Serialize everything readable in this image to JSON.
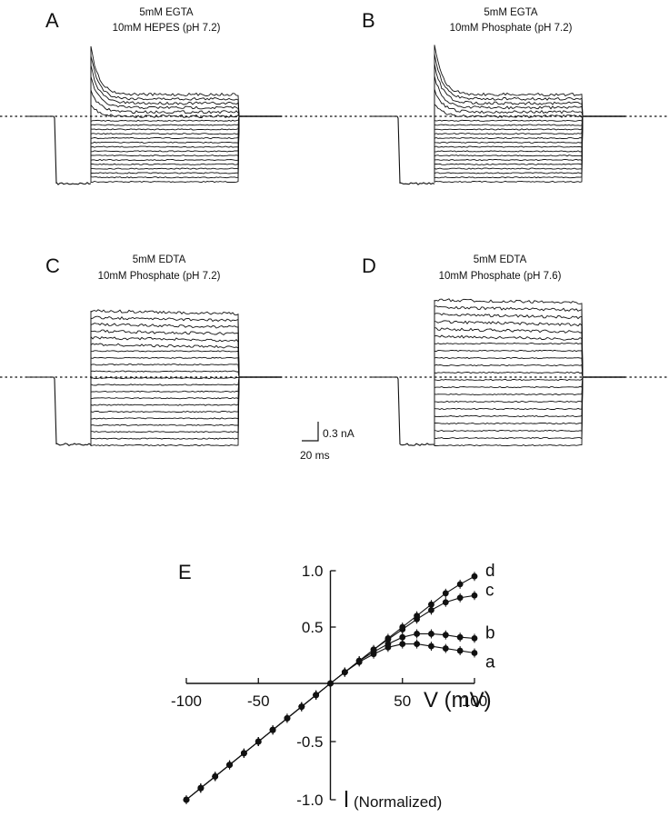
{
  "panels": [
    {
      "letter": "A",
      "condition": [
        "5mM EGTA",
        "10mM HEPES (pH 7.2)"
      ],
      "peak": "strong"
    },
    {
      "letter": "B",
      "condition": [
        "5mM EGTA",
        "10mM Phosphate (pH 7.2)"
      ],
      "peak": "strong"
    },
    {
      "letter": "C",
      "condition": [
        "5mM EDTA",
        "10mM Phosphate (pH 7.2)"
      ],
      "peak": "none"
    },
    {
      "letter": "D",
      "condition": [
        "5mM EDTA",
        "10mM Phosphate (pH 7.6)"
      ],
      "peak": "none"
    }
  ],
  "scale_bar": {
    "current": "0.3 nA",
    "time": "20 ms"
  },
  "chart_data": {
    "type": "line",
    "panel_label": "E",
    "x_axis_title": "V (mV)",
    "y_axis_note": "(Normalized)",
    "xlim": [
      -100,
      100
    ],
    "ylim": [
      -1.0,
      1.0
    ],
    "x_ticks": [
      "-100",
      "-50",
      "50",
      "100"
    ],
    "y_ticks": [
      "1.0",
      "0.5",
      "-0.5",
      "-1.0"
    ],
    "x": [
      -100,
      -90,
      -80,
      -70,
      -60,
      -50,
      -40,
      -30,
      -20,
      -10,
      0,
      10,
      20,
      30,
      40,
      50,
      60,
      70,
      80,
      90,
      100
    ],
    "series": [
      {
        "name": "a",
        "values": [
          -1.0,
          -0.9,
          -0.8,
          -0.7,
          -0.6,
          -0.5,
          -0.4,
          -0.3,
          -0.2,
          -0.1,
          0.0,
          0.1,
          0.19,
          0.26,
          0.32,
          0.35,
          0.35,
          0.33,
          0.31,
          0.29,
          0.27
        ]
      },
      {
        "name": "b",
        "values": [
          -1.0,
          -0.9,
          -0.8,
          -0.7,
          -0.6,
          -0.5,
          -0.4,
          -0.3,
          -0.2,
          -0.1,
          0.0,
          0.1,
          0.2,
          0.28,
          0.35,
          0.41,
          0.44,
          0.44,
          0.43,
          0.41,
          0.4
        ]
      },
      {
        "name": "c",
        "values": [
          -1.0,
          -0.9,
          -0.8,
          -0.7,
          -0.6,
          -0.5,
          -0.4,
          -0.3,
          -0.2,
          -0.1,
          0.0,
          0.1,
          0.2,
          0.3,
          0.39,
          0.48,
          0.57,
          0.65,
          0.72,
          0.76,
          0.78
        ]
      },
      {
        "name": "d",
        "values": [
          -1.0,
          -0.9,
          -0.8,
          -0.7,
          -0.6,
          -0.5,
          -0.4,
          -0.3,
          -0.2,
          -0.1,
          0.0,
          0.1,
          0.2,
          0.3,
          0.4,
          0.5,
          0.6,
          0.7,
          0.8,
          0.88,
          0.95
        ]
      }
    ]
  }
}
